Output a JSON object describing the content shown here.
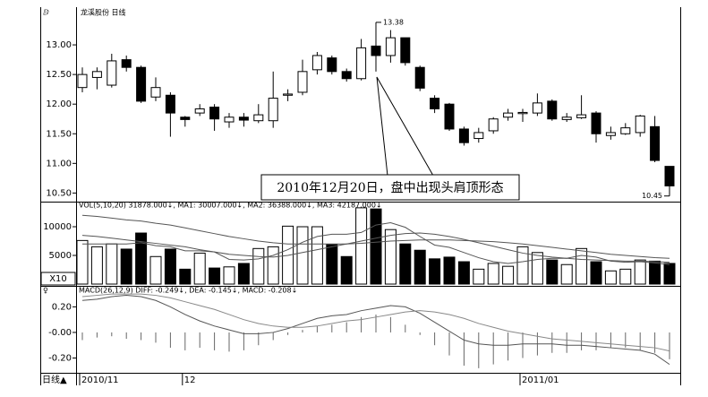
{
  "chart_data": [
    {
      "type": "candlestick",
      "title": "龙溪股份 日线",
      "open": [
        12.28,
        12.45,
        12.32,
        12.75,
        12.62,
        12.12,
        12.15,
        11.78,
        11.85,
        11.95,
        11.7,
        11.78,
        11.72,
        11.72,
        12.15,
        12.2,
        12.58,
        12.78,
        12.55,
        12.43,
        12.98,
        12.82,
        13.12,
        12.62,
        12.1,
        12.0,
        11.58,
        11.42,
        11.55,
        11.78,
        11.84,
        11.85,
        12.05,
        11.74,
        11.77,
        11.85,
        11.47,
        11.5,
        11.52,
        11.62,
        10.95
      ],
      "high": [
        12.62,
        12.62,
        12.85,
        12.82,
        12.65,
        12.45,
        12.2,
        11.8,
        12.0,
        12.0,
        11.85,
        11.85,
        12.0,
        12.55,
        12.25,
        12.75,
        12.88,
        12.82,
        12.6,
        13.1,
        13.38,
        13.25,
        13.12,
        12.65,
        12.15,
        12.02,
        11.62,
        11.6,
        11.78,
        11.92,
        11.92,
        12.18,
        12.08,
        11.85,
        12.15,
        11.88,
        11.62,
        11.68,
        11.82,
        11.8,
        10.95
      ],
      "low": [
        12.2,
        12.25,
        12.28,
        12.55,
        12.02,
        12.05,
        11.45,
        11.62,
        11.8,
        11.55,
        11.6,
        11.62,
        11.68,
        11.6,
        12.05,
        12.15,
        12.5,
        12.5,
        12.38,
        12.4,
        12.55,
        12.7,
        12.65,
        12.22,
        11.85,
        11.55,
        11.3,
        11.35,
        11.5,
        11.72,
        11.7,
        11.8,
        11.72,
        11.7,
        11.75,
        11.35,
        11.4,
        11.48,
        11.45,
        11.02,
        10.45
      ],
      "close": [
        12.5,
        12.55,
        12.73,
        12.62,
        12.05,
        12.28,
        11.85,
        11.74,
        11.92,
        11.75,
        11.78,
        11.73,
        11.82,
        12.1,
        12.17,
        12.55,
        12.82,
        12.55,
        12.43,
        12.95,
        12.82,
        13.12,
        12.7,
        12.27,
        11.92,
        11.58,
        11.35,
        11.52,
        11.75,
        11.85,
        11.86,
        12.02,
        11.75,
        11.78,
        11.82,
        11.5,
        11.52,
        11.6,
        11.8,
        11.05,
        10.62
      ],
      "ylim": [
        10.4,
        13.5
      ],
      "yticks": [
        {
          "value": 10.5,
          "label": "10.50"
        },
        {
          "value": 11,
          "label": "11.00"
        },
        {
          "value": 11.5,
          "label": "11.50"
        },
        {
          "value": 12,
          "label": "12.00"
        },
        {
          "value": 12.5,
          "label": "12.50"
        },
        {
          "value": 13,
          "label": "13.00"
        }
      ],
      "high_label": "13.38",
      "low_label": "10.45",
      "annotation": "2010年12月20日，盘中出现头肩顶形态"
    },
    {
      "type": "volume",
      "title": "VOL(5,10,20) 31878.000↓, MA1: 30007.000↓, MA2: 36388.000↓, MA3: 42187.000↓",
      "unit_label": "X10",
      "values": [
        7600,
        6500,
        7000,
        6100,
        8900,
        4800,
        6100,
        2600,
        5400,
        2800,
        3000,
        3600,
        6200,
        6500,
        10100,
        10000,
        10000,
        6900,
        4800,
        13300,
        13100,
        9500,
        7000,
        5900,
        4400,
        4700,
        3900,
        2600,
        3600,
        3100,
        6500,
        5500,
        4200,
        3400,
        6200,
        3900,
        2300,
        2600,
        4200,
        4000,
        3600
      ],
      "series": [
        {
          "name": "MA1",
          "color": "#555",
          "values": [
            7000,
            7000,
            7000,
            7000,
            7200,
            6700,
            6500,
            5800,
            5800,
            5600,
            4300,
            4200,
            4400,
            5000,
            6000,
            7300,
            8300,
            8700,
            8700,
            9000,
            10300,
            10700,
            9900,
            8300,
            6800,
            6400,
            5500,
            4600,
            3900,
            3600,
            3900,
            4300,
            4500,
            4500,
            5000,
            4700,
            4000,
            3800,
            3900,
            3700,
            3400
          ]
        },
        {
          "name": "MA2",
          "color": "#555",
          "values": [
            8500,
            8300,
            8000,
            7700,
            7400,
            7100,
            6800,
            6500,
            6000,
            5600,
            5200,
            5000,
            4800,
            4700,
            5000,
            5500,
            6000,
            6500,
            7000,
            7500,
            8000,
            8500,
            8800,
            8900,
            8700,
            8300,
            7800,
            7200,
            6600,
            6000,
            5400,
            5000,
            4700,
            4500,
            4300,
            4200,
            4100,
            4000,
            4000,
            3900,
            3800
          ]
        },
        {
          "name": "MA3",
          "color": "#555",
          "values": [
            12000,
            11800,
            11500,
            11200,
            11000,
            10600,
            10300,
            9800,
            9300,
            8800,
            8300,
            7900,
            7500,
            7200,
            7000,
            7000,
            7000,
            7000,
            7000,
            7100,
            7300,
            7500,
            7600,
            7700,
            7700,
            7700,
            7600,
            7500,
            7400,
            7200,
            7000,
            6700,
            6400,
            6100,
            5800,
            5500,
            5200,
            5000,
            4800,
            4600,
            4500
          ]
        }
      ],
      "ylim": [
        0,
        14000
      ],
      "yticks": [
        5000,
        10000
      ]
    },
    {
      "type": "macd",
      "title": "MACD(26,12,9) DIFF: -0.249↓, DEA: -0.145↓, MACD: -0.208↓",
      "categories": [
        "2010/11",
        null,
        null,
        null,
        null,
        null,
        null,
        "12",
        null,
        null,
        null,
        null,
        null,
        null,
        null,
        null,
        null,
        null,
        null,
        null,
        null,
        null,
        null,
        null,
        null,
        null,
        null,
        null,
        null,
        null,
        "2011/01",
        null,
        null,
        null,
        null,
        null,
        null,
        null,
        null,
        null,
        null
      ],
      "period_label": "日线▲",
      "values": [
        -0.06,
        -0.04,
        -0.03,
        -0.05,
        -0.06,
        -0.08,
        -0.12,
        -0.14,
        -0.12,
        -0.14,
        -0.15,
        -0.14,
        -0.1,
        -0.06,
        -0.02,
        0.02,
        0.05,
        0.06,
        0.08,
        0.12,
        0.14,
        0.12,
        0.06,
        -0.02,
        -0.1,
        -0.18,
        -0.26,
        -0.28,
        -0.25,
        -0.22,
        -0.2,
        -0.18,
        -0.16,
        -0.16,
        -0.14,
        -0.14,
        -0.12,
        -0.12,
        -0.14,
        -0.16,
        -0.21
      ],
      "series": [
        {
          "name": "DIFF",
          "color": "#555",
          "values": [
            0.25,
            0.26,
            0.28,
            0.29,
            0.28,
            0.25,
            0.2,
            0.14,
            0.09,
            0.05,
            0.02,
            -0.01,
            -0.01,
            0.0,
            0.03,
            0.07,
            0.11,
            0.13,
            0.14,
            0.17,
            0.19,
            0.21,
            0.2,
            0.15,
            0.08,
            0.01,
            -0.06,
            -0.09,
            -0.1,
            -0.1,
            -0.09,
            -0.09,
            -0.09,
            -0.1,
            -0.1,
            -0.11,
            -0.12,
            -0.13,
            -0.14,
            -0.17,
            -0.25
          ]
        },
        {
          "name": "DEA",
          "color": "#888",
          "values": [
            0.28,
            0.29,
            0.3,
            0.3,
            0.3,
            0.29,
            0.27,
            0.24,
            0.21,
            0.18,
            0.14,
            0.1,
            0.07,
            0.05,
            0.04,
            0.04,
            0.05,
            0.07,
            0.09,
            0.1,
            0.12,
            0.14,
            0.16,
            0.17,
            0.16,
            0.14,
            0.11,
            0.07,
            0.04,
            0.01,
            -0.01,
            -0.03,
            -0.05,
            -0.06,
            -0.07,
            -0.08,
            -0.09,
            -0.1,
            -0.11,
            -0.12,
            -0.145
          ]
        }
      ],
      "ylim": [
        -0.32,
        0.35
      ],
      "yticks": [
        {
          "value": -0.2,
          "label": "-0.20"
        },
        {
          "value": 0,
          "label": "-0.00"
        },
        {
          "value": 0.2,
          "label": "0.20"
        }
      ]
    }
  ]
}
